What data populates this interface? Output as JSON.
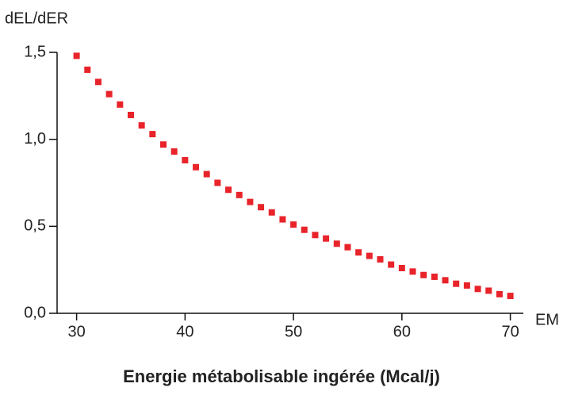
{
  "chart_data": {
    "type": "scatter",
    "title": "Energie métabolisable ingérée (Mcal/j)",
    "y_label": "dEL/dER",
    "x_label": "EM",
    "x": [
      30,
      31,
      32,
      33,
      34,
      35,
      36,
      37,
      38,
      39,
      40,
      41,
      42,
      43,
      44,
      45,
      46,
      47,
      48,
      49,
      50,
      51,
      52,
      53,
      54,
      55,
      56,
      57,
      58,
      59,
      60,
      61,
      62,
      63,
      64,
      65,
      66,
      67,
      68,
      69,
      70
    ],
    "values": [
      1.48,
      1.4,
      1.33,
      1.26,
      1.2,
      1.14,
      1.08,
      1.03,
      0.97,
      0.93,
      0.88,
      0.84,
      0.8,
      0.75,
      0.71,
      0.68,
      0.64,
      0.61,
      0.58,
      0.54,
      0.51,
      0.48,
      0.45,
      0.43,
      0.4,
      0.38,
      0.35,
      0.33,
      0.31,
      0.28,
      0.26,
      0.24,
      0.22,
      0.21,
      0.19,
      0.17,
      0.16,
      0.14,
      0.13,
      0.11,
      0.1
    ],
    "color": "#e8232a",
    "xlim": [
      28.2,
      71.2
    ],
    "ylim": [
      0,
      1.5
    ],
    "xticks": [
      30,
      40,
      50,
      60,
      70
    ],
    "yticks": [
      {
        "value": 0,
        "label": "0,0"
      },
      {
        "value": 0.5,
        "label": "0,5"
      },
      {
        "value": 1.0,
        "label": "1,0"
      },
      {
        "value": 1.5,
        "label": "1,5"
      }
    ],
    "grid": false
  }
}
